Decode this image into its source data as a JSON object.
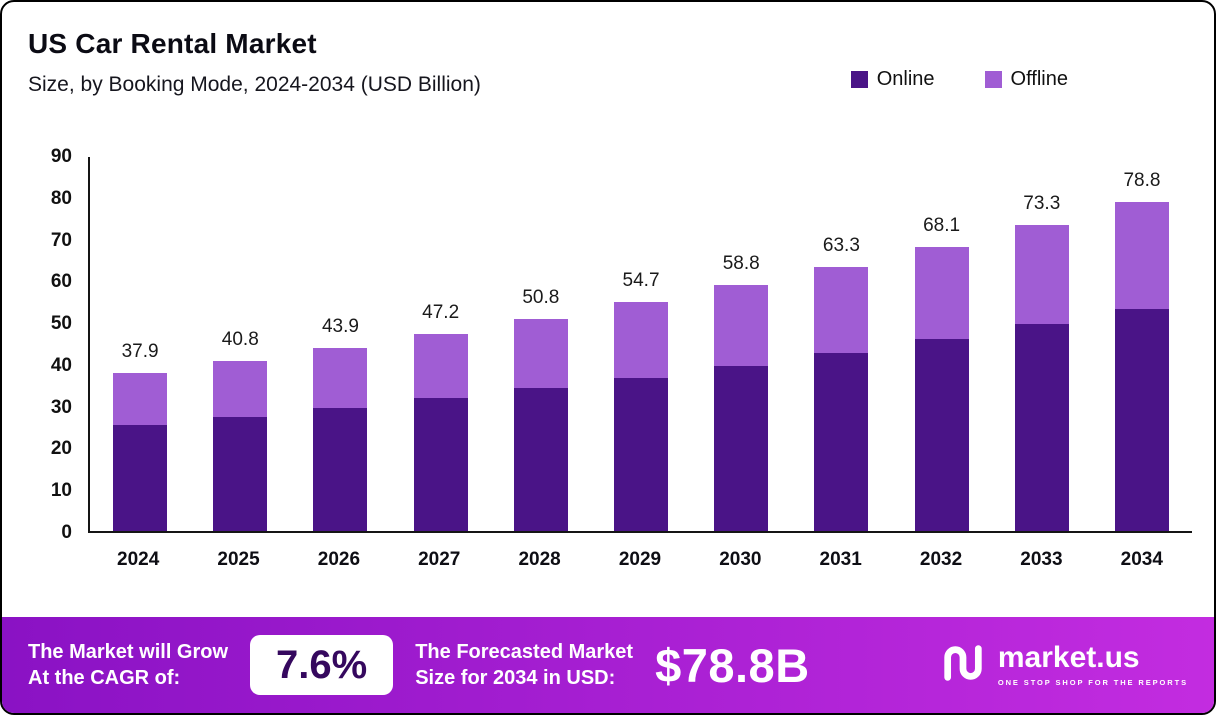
{
  "header": {
    "title": "US Car Rental Market",
    "subtitle": "Size, by Booking Mode, 2024-2034 (USD Billion)"
  },
  "legend": [
    {
      "label": "Online",
      "color": "#4a1487"
    },
    {
      "label": "Offline",
      "color": "#a05dd4"
    }
  ],
  "chart_data": {
    "type": "bar",
    "stacked": true,
    "title": "US Car Rental Market Size, by Booking Mode, 2024-2034 (USD Billion)",
    "categories": [
      "2024",
      "2025",
      "2026",
      "2027",
      "2028",
      "2029",
      "2030",
      "2031",
      "2032",
      "2033",
      "2034"
    ],
    "series": [
      {
        "name": "Online",
        "color": "#4a1487",
        "values": [
          25.3,
          27.4,
          29.4,
          31.9,
          34.2,
          36.6,
          39.5,
          42.7,
          46.0,
          49.6,
          53.2
        ]
      },
      {
        "name": "Offline",
        "color": "#a05dd4",
        "values": [
          12.6,
          13.4,
          14.5,
          15.3,
          16.6,
          18.1,
          19.3,
          20.6,
          22.1,
          23.7,
          25.6
        ]
      }
    ],
    "totals": [
      37.9,
      40.8,
      43.9,
      47.2,
      50.8,
      54.7,
      58.8,
      63.3,
      68.1,
      73.3,
      78.8
    ],
    "total_labels": [
      "37.9",
      "40.8",
      "43.9",
      "47.2",
      "50.8",
      "54.7",
      "58.8",
      "63.3",
      "68.1",
      "73.3",
      "78.8"
    ],
    "xlabel": "",
    "ylabel": "",
    "ylim": [
      0,
      90
    ],
    "y_ticks": [
      0,
      10,
      20,
      30,
      40,
      50,
      60,
      70,
      80,
      90
    ],
    "grid": false,
    "legend_position": "top-right"
  },
  "banner": {
    "gradient": [
      "#8a12c4",
      "#c32ce0"
    ],
    "cagr": {
      "label_line1": "The Market will Grow",
      "label_line2": "At the CAGR of:",
      "value": "7.6%"
    },
    "forecast": {
      "label_line1": "The Forecasted Market",
      "label_line2": "Size for 2034 in USD:",
      "value": "$78.8B"
    },
    "logo": {
      "text": "market.us",
      "tagline": "ONE STOP SHOP FOR THE REPORTS"
    }
  }
}
